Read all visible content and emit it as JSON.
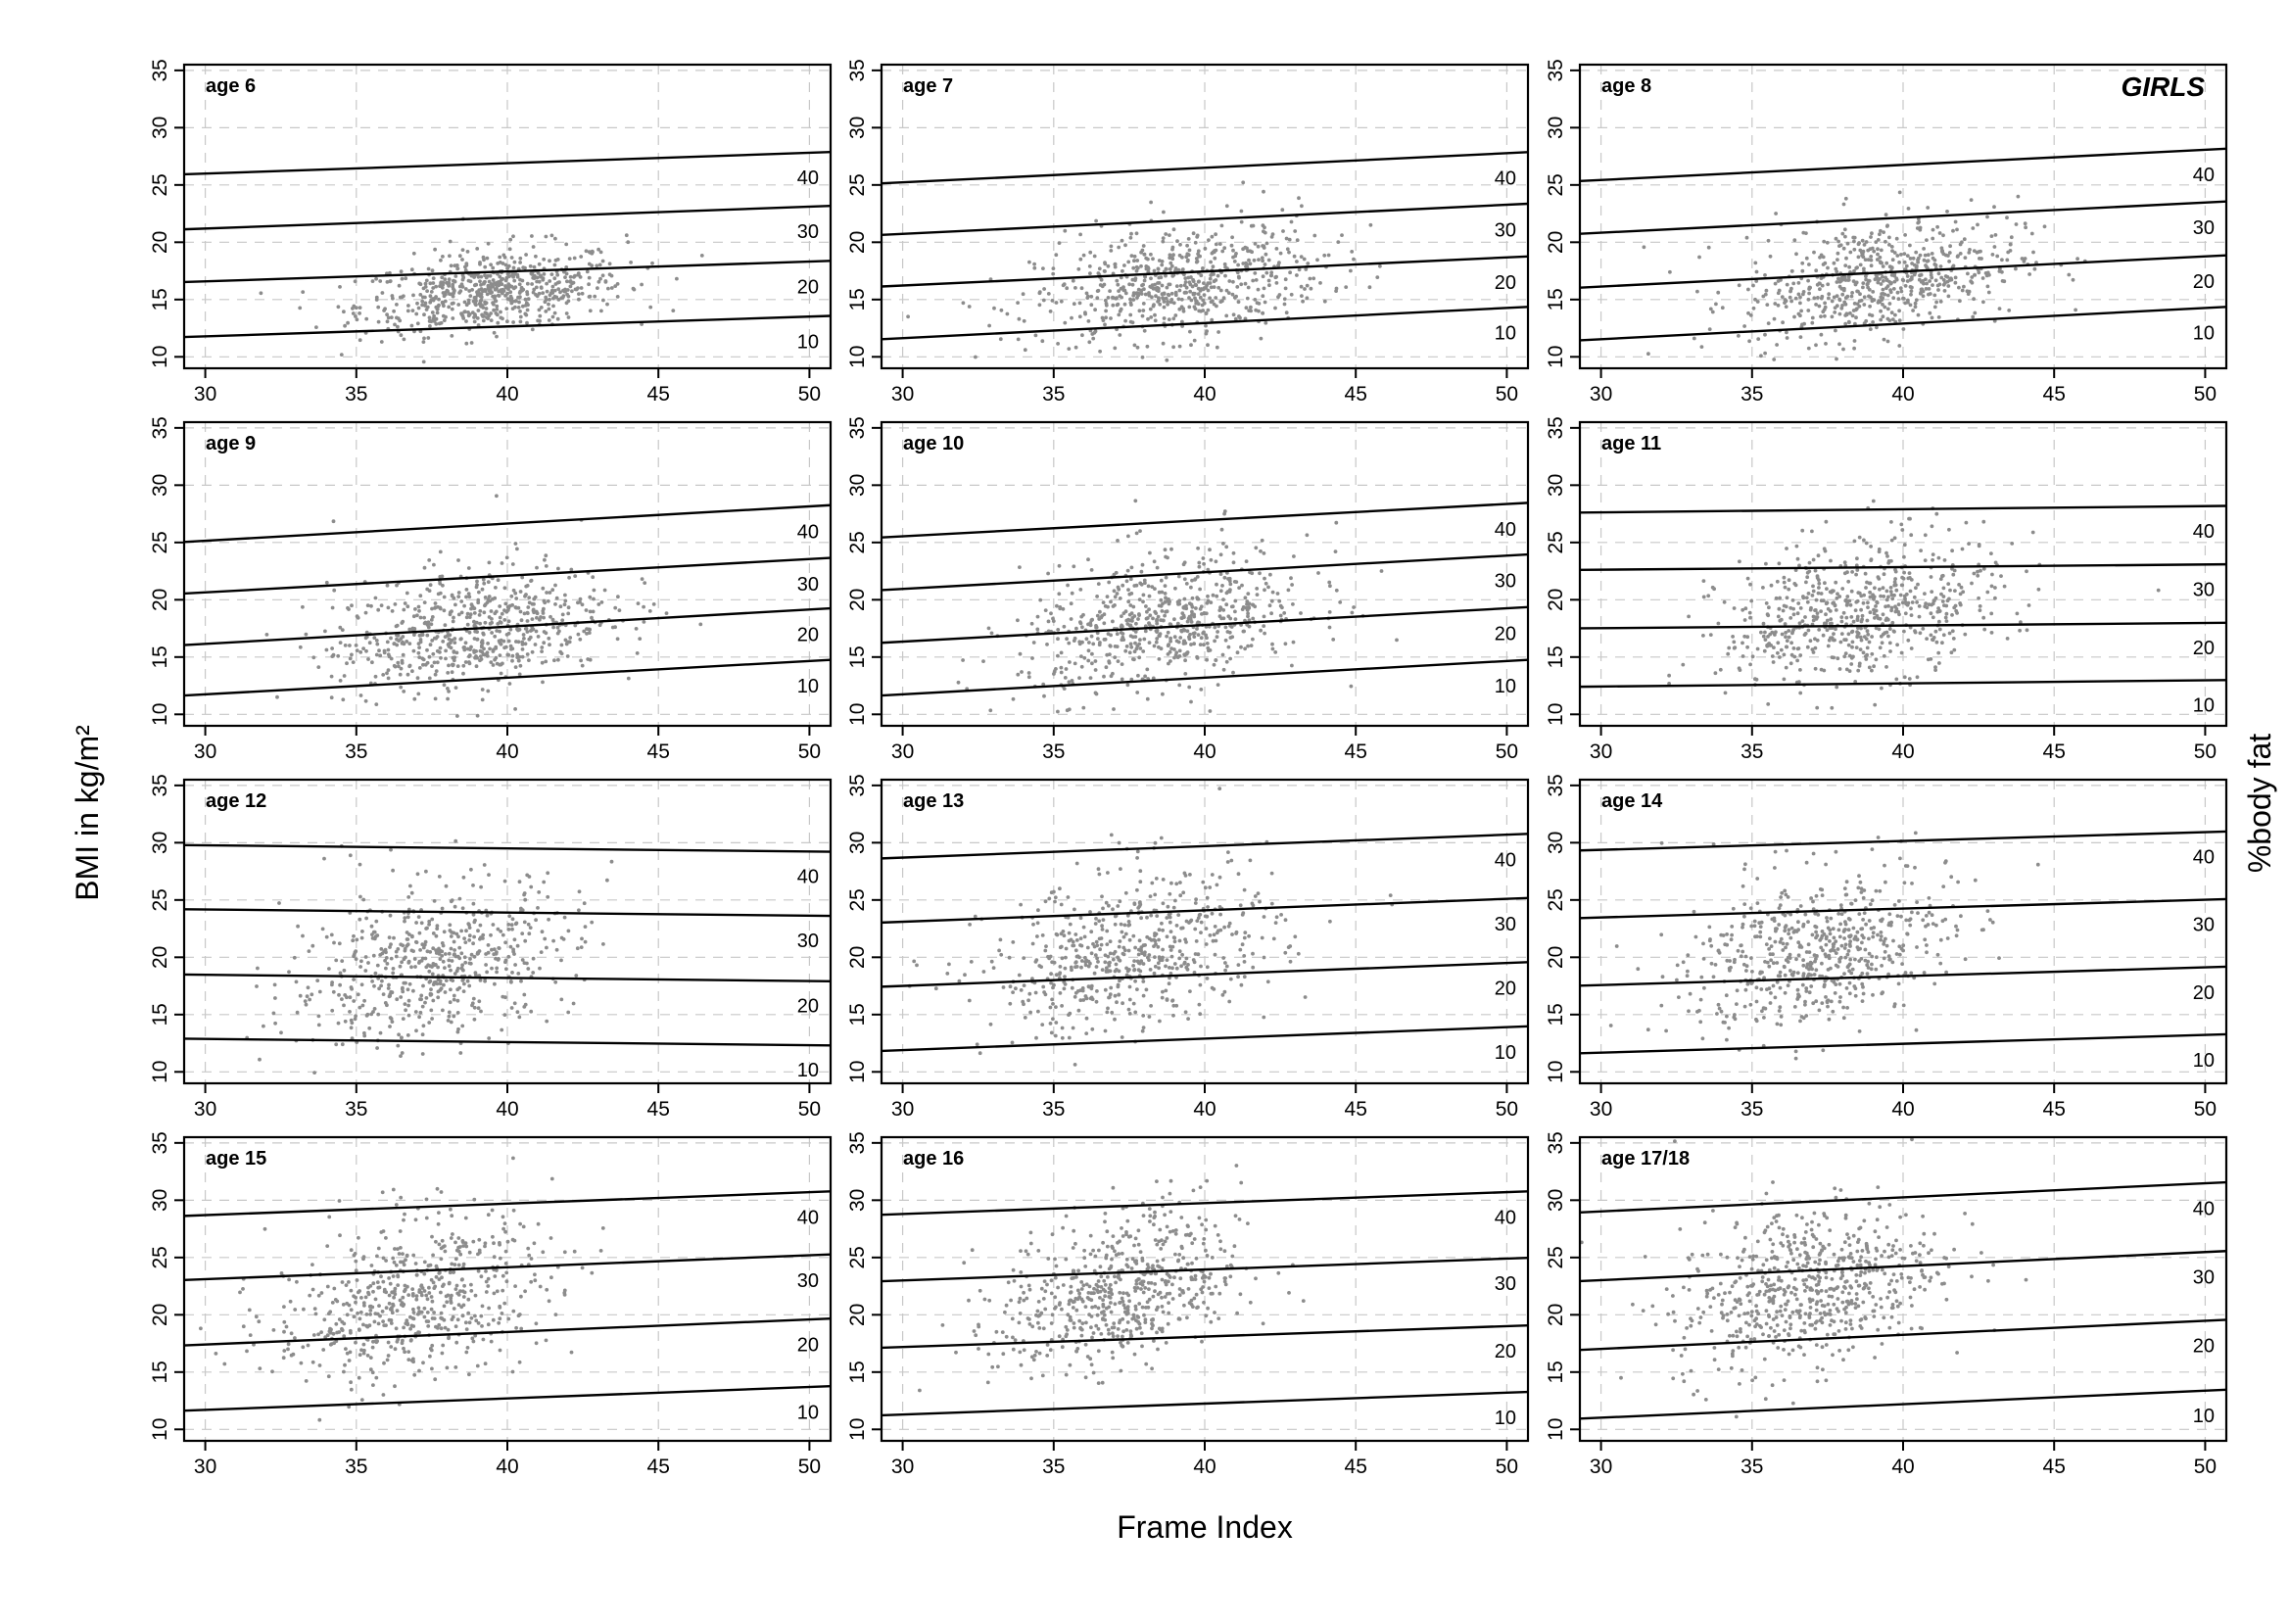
{
  "figure": {
    "title": "GIRLS",
    "xlabel": "Frame Index",
    "ylabel": "BMI in kg/m²",
    "y2label": "%body fat"
  },
  "chart_data": {
    "type": "scatter",
    "xlim": [
      29.3,
      50.7
    ],
    "ylim": [
      9,
      35.5
    ],
    "x_ticks": [
      30,
      35,
      40,
      45,
      50
    ],
    "y_ticks": [
      10,
      15,
      20,
      25,
      30,
      35
    ],
    "grid": true,
    "point_color": "#8c8c8c",
    "line_color": "#000000",
    "panels": [
      {
        "label": "age 6",
        "lines": [
          {
            "label": "10",
            "y_at_29": 11.7,
            "y_at_51": 13.6
          },
          {
            "label": "20",
            "y_at_29": 16.5,
            "y_at_51": 18.4
          },
          {
            "label": "30",
            "y_at_29": 21.1,
            "y_at_51": 23.2
          },
          {
            "label": "40",
            "y_at_29": 25.9,
            "y_at_51": 27.9
          }
        ],
        "scatter": {
          "x_mean": 39.5,
          "x_sd": 2.2,
          "y_mean": 15.6,
          "y_sd": 1.7,
          "n": 650
        }
      },
      {
        "label": "age 7",
        "lines": [
          {
            "label": "10",
            "y_at_29": 11.5,
            "y_at_51": 14.4
          },
          {
            "label": "20",
            "y_at_29": 16.1,
            "y_at_51": 18.8
          },
          {
            "label": "30",
            "y_at_29": 20.6,
            "y_at_51": 23.4
          },
          {
            "label": "40",
            "y_at_29": 25.1,
            "y_at_51": 27.9
          }
        ],
        "scatter": {
          "x_mean": 39.2,
          "x_sd": 2.4,
          "y_mean": 16.3,
          "y_sd": 2.4,
          "n": 650
        }
      },
      {
        "label": "age 8",
        "lines": [
          {
            "label": "10",
            "y_at_29": 11.4,
            "y_at_51": 14.4
          },
          {
            "label": "20",
            "y_at_29": 16.0,
            "y_at_51": 18.9
          },
          {
            "label": "30",
            "y_at_29": 20.7,
            "y_at_51": 23.6
          },
          {
            "label": "40",
            "y_at_29": 25.3,
            "y_at_51": 28.2
          }
        ],
        "scatter": {
          "x_mean": 39.2,
          "x_sd": 2.3,
          "y_mean": 16.7,
          "y_sd": 2.5,
          "n": 650
        }
      },
      {
        "label": "age 9",
        "lines": [
          {
            "label": "10",
            "y_at_29": 11.6,
            "y_at_51": 14.8
          },
          {
            "label": "20",
            "y_at_29": 16.0,
            "y_at_51": 19.3
          },
          {
            "label": "30",
            "y_at_29": 20.5,
            "y_at_51": 23.7
          },
          {
            "label": "40",
            "y_at_29": 25.0,
            "y_at_51": 28.3
          }
        ],
        "scatter": {
          "x_mean": 38.8,
          "x_sd": 2.3,
          "y_mean": 17.3,
          "y_sd": 2.6,
          "n": 650
        }
      },
      {
        "label": "age 10",
        "lines": [
          {
            "label": "10",
            "y_at_29": 11.6,
            "y_at_51": 14.8
          },
          {
            "label": "20",
            "y_at_29": 16.2,
            "y_at_51": 19.4
          },
          {
            "label": "30",
            "y_at_29": 20.8,
            "y_at_51": 24.0
          },
          {
            "label": "40",
            "y_at_29": 25.4,
            "y_at_51": 28.5
          }
        ],
        "scatter": {
          "x_mean": 38.7,
          "x_sd": 2.4,
          "y_mean": 17.9,
          "y_sd": 2.8,
          "n": 650
        }
      },
      {
        "label": "age 11",
        "lines": [
          {
            "label": "10",
            "y_at_29": 12.4,
            "y_at_51": 13.0
          },
          {
            "label": "20",
            "y_at_29": 17.5,
            "y_at_51": 18.0
          },
          {
            "label": "30",
            "y_at_29": 22.6,
            "y_at_51": 23.1
          },
          {
            "label": "40",
            "y_at_29": 27.6,
            "y_at_51": 28.2
          }
        ],
        "scatter": {
          "x_mean": 38.6,
          "x_sd": 2.3,
          "y_mean": 18.9,
          "y_sd": 3.0,
          "n": 650
        }
      },
      {
        "label": "age 12",
        "lines": [
          {
            "label": "10",
            "y_at_29": 12.9,
            "y_at_51": 12.3
          },
          {
            "label": "20",
            "y_at_29": 18.5,
            "y_at_51": 17.9
          },
          {
            "label": "30",
            "y_at_29": 24.2,
            "y_at_51": 23.6
          },
          {
            "label": "40",
            "y_at_29": 29.8,
            "y_at_51": 29.2
          }
        ],
        "scatter": {
          "x_mean": 37.5,
          "x_sd": 2.4,
          "y_mean": 19.3,
          "y_sd": 3.3,
          "n": 600
        }
      },
      {
        "label": "age 13",
        "lines": [
          {
            "label": "10",
            "y_at_29": 11.8,
            "y_at_51": 14.0
          },
          {
            "label": "20",
            "y_at_29": 17.4,
            "y_at_51": 19.6
          },
          {
            "label": "30",
            "y_at_29": 23.0,
            "y_at_51": 25.2
          },
          {
            "label": "40",
            "y_at_29": 28.6,
            "y_at_51": 30.8
          }
        ],
        "scatter": {
          "x_mean": 37.6,
          "x_sd": 2.4,
          "y_mean": 20.2,
          "y_sd": 3.3,
          "n": 600
        }
      },
      {
        "label": "age 14",
        "lines": [
          {
            "label": "10",
            "y_at_29": 11.6,
            "y_at_51": 13.3
          },
          {
            "label": "20",
            "y_at_29": 17.5,
            "y_at_51": 19.2
          },
          {
            "label": "30",
            "y_at_29": 23.4,
            "y_at_51": 25.1
          },
          {
            "label": "40",
            "y_at_29": 29.3,
            "y_at_51": 31.0
          }
        ],
        "scatter": {
          "x_mean": 37.2,
          "x_sd": 2.2,
          "y_mean": 20.4,
          "y_sd": 3.2,
          "n": 600
        }
      },
      {
        "label": "age 15",
        "lines": [
          {
            "label": "10",
            "y_at_29": 11.6,
            "y_at_51": 13.8
          },
          {
            "label": "20",
            "y_at_29": 17.3,
            "y_at_51": 19.7
          },
          {
            "label": "30",
            "y_at_29": 23.0,
            "y_at_51": 25.3
          },
          {
            "label": "40",
            "y_at_29": 28.6,
            "y_at_51": 30.8
          }
        ],
        "scatter": {
          "x_mean": 36.8,
          "x_sd": 2.3,
          "y_mean": 21.2,
          "y_sd": 3.4,
          "n": 600
        }
      },
      {
        "label": "age 16",
        "lines": [
          {
            "label": "10",
            "y_at_29": 11.2,
            "y_at_51": 13.3
          },
          {
            "label": "20",
            "y_at_29": 17.1,
            "y_at_51": 19.1
          },
          {
            "label": "30",
            "y_at_29": 22.9,
            "y_at_51": 25.0
          },
          {
            "label": "40",
            "y_at_29": 28.7,
            "y_at_51": 30.8
          }
        ],
        "scatter": {
          "x_mean": 37.2,
          "x_sd": 2.0,
          "y_mean": 21.9,
          "y_sd": 3.3,
          "n": 600
        }
      },
      {
        "label": "age 17/18",
        "lines": [
          {
            "label": "10",
            "y_at_29": 10.9,
            "y_at_51": 13.5
          },
          {
            "label": "20",
            "y_at_29": 16.9,
            "y_at_51": 19.6
          },
          {
            "label": "30",
            "y_at_29": 22.9,
            "y_at_51": 25.6
          },
          {
            "label": "40",
            "y_at_29": 28.9,
            "y_at_51": 31.6
          }
        ],
        "scatter": {
          "x_mean": 36.8,
          "x_sd": 2.2,
          "y_mean": 22.3,
          "y_sd": 3.5,
          "n": 650
        }
      }
    ]
  }
}
